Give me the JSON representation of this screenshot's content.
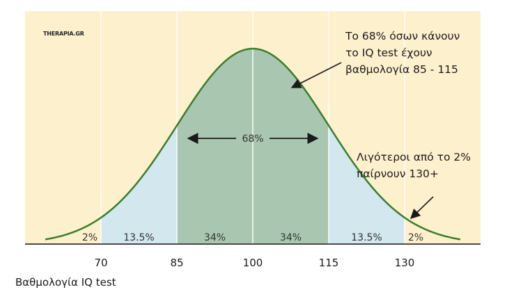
{
  "source_label": "THERAPIA.GR",
  "annotations": {
    "middle": "Το 68% όσων κάνουν\nτο IQ test έχουν\nβαθμολογία 85 - 115",
    "tail": "Λιγότεροι από το 2%\nπαίρνουν 130+"
  },
  "colors": {
    "background": "#fdf0cc",
    "curve": "#3a7d2c",
    "middle_fill": "#a9c7b0",
    "side_fill": "#d2e7ee",
    "gridline": "#ffffff",
    "text": "#333333"
  },
  "chart_data": {
    "type": "area",
    "title": "",
    "xlabel": "Βαθμολογία IQ test",
    "ylabel": "",
    "distribution": {
      "mean": 100,
      "sd": 15
    },
    "xlim": [
      55,
      145
    ],
    "x_ticks": [
      70,
      85,
      100,
      115,
      130
    ],
    "segments": [
      {
        "from": 55,
        "to": 70,
        "label": "2%"
      },
      {
        "from": 70,
        "to": 85,
        "label": "13.5%"
      },
      {
        "from": 85,
        "to": 100,
        "label": "34%"
      },
      {
        "from": 100,
        "to": 115,
        "label": "34%"
      },
      {
        "from": 115,
        "to": 130,
        "label": "13.5%"
      },
      {
        "from": 130,
        "to": 145,
        "label": "2%"
      }
    ],
    "bracket": {
      "from": 85,
      "to": 115,
      "label": "68%"
    },
    "grid": true
  }
}
